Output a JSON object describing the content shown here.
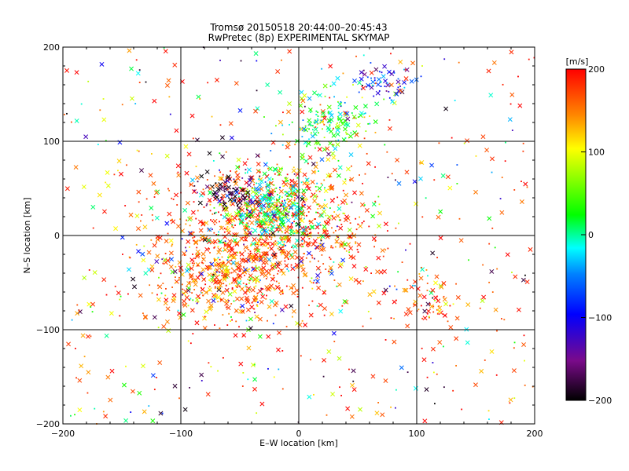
{
  "chart_data": {
    "type": "scatter",
    "title": "Tromsø 20150518 20:44:00–20:45:43",
    "subtitle": "RwPretec (8p) EXPERIMENTAL SKYMAP",
    "xlabel": "E–W location [km]",
    "ylabel": "N–S location [km]",
    "xlim": [
      -200,
      200
    ],
    "ylim": [
      -200,
      200
    ],
    "x_ticks": [
      -200,
      -100,
      0,
      100,
      200
    ],
    "y_ticks": [
      -200,
      -100,
      0,
      100,
      200
    ],
    "x_tick_labels": [
      "−200",
      "−100",
      "0",
      "100",
      "200"
    ],
    "y_tick_labels": [
      "−200",
      "−100",
      "0",
      "100",
      "200"
    ],
    "grid": true,
    "marker_styles": [
      "cross",
      "dot"
    ],
    "colorbar": {
      "unit_label": "[m/s]",
      "range": [
        -200,
        200
      ],
      "ticks": [
        -200,
        -100,
        0,
        100,
        200
      ],
      "tick_labels": [
        "−200",
        "−100",
        "0",
        "100",
        "200"
      ],
      "colormap": "IDL rainbow (black → purple → blue → cyan → green → yellow → red)"
    },
    "clusters_approx": [
      {
        "x": -30,
        "y": 0,
        "spread": 45,
        "mean_velocity": 170
      },
      {
        "x": -70,
        "y": -50,
        "spread": 25,
        "mean_velocity": 160
      },
      {
        "x": -60,
        "y": 45,
        "spread": 12,
        "mean_velocity": -190
      },
      {
        "x": -20,
        "y": 30,
        "spread": 20,
        "mean_velocity": 10
      },
      {
        "x": 25,
        "y": 120,
        "spread": 18,
        "mean_velocity": 30
      },
      {
        "x": 75,
        "y": 165,
        "spread": 12,
        "mean_velocity": -90
      },
      {
        "x": 110,
        "y": -70,
        "spread": 15,
        "mean_velocity": 180
      }
    ]
  }
}
